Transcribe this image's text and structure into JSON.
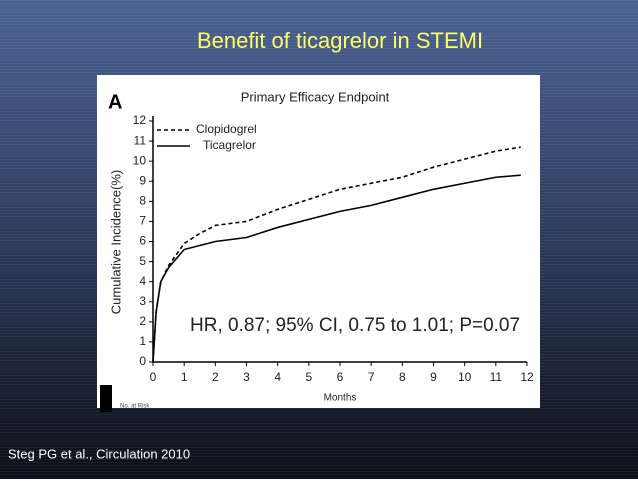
{
  "slide_title": "Benefit of ticagrelor in STEMI",
  "citation": "Steg PG et al., Circulation 2010",
  "chart_data": {
    "type": "line",
    "panel_label": "A",
    "title": "Primary Efficacy Endpoint",
    "y_label": "Cumulative Incidence(%)",
    "x_label": "Months",
    "annotation": "HR, 0.87; 95% CI, 0.75 to 1.01; P=0.07",
    "footer": "No. at Risk",
    "x": [
      0,
      0.1,
      0.25,
      0.5,
      1,
      1.5,
      2,
      3,
      4,
      5,
      6,
      7,
      8,
      9,
      10,
      11,
      11.8
    ],
    "series": [
      {
        "name": "Clopidogrel",
        "color": "#000000",
        "dashed": true,
        "values": [
          0,
          2.5,
          4.0,
          4.8,
          5.9,
          6.4,
          6.8,
          7.0,
          7.6,
          8.1,
          8.6,
          8.9,
          9.2,
          9.7,
          10.1,
          10.5,
          10.7
        ]
      },
      {
        "name": "Ticagrelor",
        "color": "#000000",
        "dashed": false,
        "values": [
          0,
          2.5,
          4.0,
          4.7,
          5.6,
          5.8,
          6.0,
          6.2,
          6.7,
          7.1,
          7.5,
          7.8,
          8.2,
          8.6,
          8.9,
          9.2,
          9.3
        ]
      }
    ],
    "xlim": [
      0,
      12
    ],
    "xticks": [
      0,
      1,
      2,
      3,
      4,
      5,
      6,
      7,
      8,
      9,
      10,
      11,
      12
    ],
    "ylim": [
      0,
      12
    ],
    "yticks": [
      0,
      1,
      2,
      3,
      4,
      5,
      6,
      7,
      8,
      9,
      10,
      11,
      12
    ],
    "grid": false
  }
}
